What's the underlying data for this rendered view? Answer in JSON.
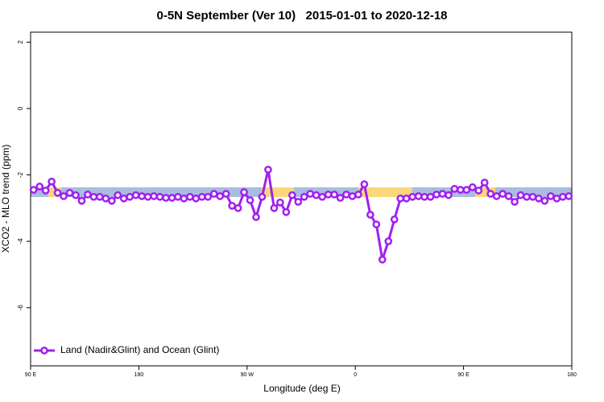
{
  "chart_data": {
    "type": "line",
    "title": "0-5N September (Ver 10)   2015-01-01 to 2020-12-18",
    "xlabel": "Longitude (deg E)",
    "ylabel": "XCO2 - MLO trend (ppm)",
    "xlim": [
      -270,
      180
    ],
    "xticks": [
      {
        "value": -270,
        "label": "90 E"
      },
      {
        "value": -180,
        "label": "180"
      },
      {
        "value": -90,
        "label": "90 W"
      },
      0,
      {
        "value": 90,
        "label": "90 E"
      },
      {
        "value": 180,
        "label": "180"
      }
    ],
    "ylim": [
      -7.75,
      2.3
    ],
    "yticks": [
      -6,
      -4,
      -2,
      0,
      2
    ],
    "legend": "bottom-left",
    "x": [
      -267.5,
      -262.5,
      -257.5,
      -252.5,
      -247.5,
      -242.5,
      -237.5,
      -232.5,
      -227.5,
      -222.5,
      -217.5,
      -212.5,
      -207.5,
      -202.5,
      -197.5,
      -192.5,
      -187.5,
      -182.5,
      -177.5,
      -172.5,
      -167.5,
      -162.5,
      -157.5,
      -152.5,
      -147.5,
      -142.5,
      -137.5,
      -132.5,
      -127.5,
      -122.5,
      -117.5,
      -112.5,
      -107.5,
      -102.5,
      -97.5,
      -92.5,
      -87.5,
      -82.5,
      -77.5,
      -72.5,
      -67.5,
      -62.5,
      -57.5,
      -52.5,
      -47.5,
      -42.5,
      -37.5,
      -32.5,
      -27.5,
      -22.5,
      -17.5,
      -12.5,
      -7.5,
      -2.5,
      2.5,
      7.5,
      12.5,
      17.5,
      22.5,
      27.5,
      32.5,
      37.5,
      42.5,
      47.5,
      52.5,
      57.5,
      62.5,
      67.5,
      72.5,
      77.5,
      82.5,
      87.5,
      92.5,
      97.5,
      102.5,
      107.5,
      112.5,
      117.5,
      122.5,
      127.5,
      132.5,
      137.5,
      142.5,
      147.5,
      152.5,
      157.5,
      162.5,
      167.5,
      172.5,
      177.5
    ],
    "series": [
      {
        "name": "Land (Nadir&Glint) and Ocean (Glint)",
        "color": "#a020f0",
        "values": [
          -2.45,
          -2.35,
          -2.47,
          -2.2,
          -2.54,
          -2.64,
          -2.54,
          -2.61,
          -2.78,
          -2.59,
          -2.66,
          -2.66,
          -2.71,
          -2.78,
          -2.61,
          -2.71,
          -2.66,
          -2.61,
          -2.64,
          -2.66,
          -2.64,
          -2.66,
          -2.69,
          -2.69,
          -2.66,
          -2.71,
          -2.66,
          -2.71,
          -2.66,
          -2.66,
          -2.57,
          -2.64,
          -2.57,
          -2.93,
          -3.0,
          -2.52,
          -2.76,
          -3.27,
          -2.66,
          -1.84,
          -3.0,
          -2.83,
          -3.12,
          -2.61,
          -2.81,
          -2.66,
          -2.57,
          -2.61,
          -2.66,
          -2.59,
          -2.59,
          -2.69,
          -2.59,
          -2.64,
          -2.59,
          -2.28,
          -3.2,
          -3.49,
          -4.55,
          -4.0,
          -3.34,
          -2.71,
          -2.71,
          -2.66,
          -2.64,
          -2.66,
          -2.66,
          -2.59,
          -2.57,
          -2.61,
          -2.42,
          -2.45,
          -2.45,
          -2.37,
          -2.47,
          -2.23,
          -2.57,
          -2.64,
          -2.57,
          -2.64,
          -2.81,
          -2.61,
          -2.66,
          -2.66,
          -2.71,
          -2.78,
          -2.64,
          -2.71,
          -2.66,
          -2.64
        ]
      }
    ]
  }
}
